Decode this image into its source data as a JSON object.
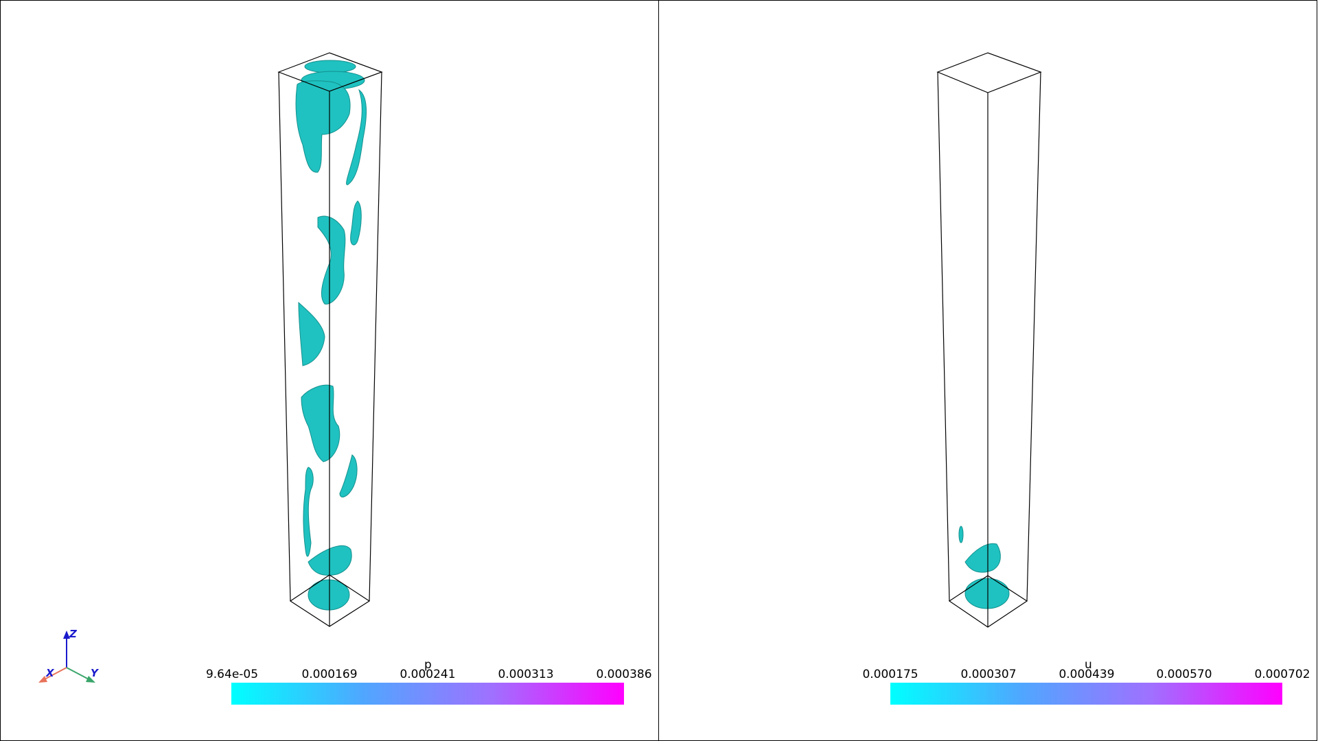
{
  "viewports": [
    {
      "name": "left",
      "scalar_title": "p",
      "ticks": [
        "9.64e-05",
        "0.000169",
        "0.000241",
        "0.000313",
        "0.000386"
      ],
      "colormap": [
        "#00ffff",
        "#ff00ff"
      ]
    },
    {
      "name": "right",
      "scalar_title": "u",
      "ticks": [
        "0.000175",
        "0.000307",
        "0.000439",
        "0.000570",
        "0.000702"
      ],
      "colormap": [
        "#00ffff",
        "#ff00ff"
      ]
    }
  ],
  "orientation_axes": {
    "x_label": "X",
    "y_label": "Y",
    "z_label": "Z",
    "x_color": "#e8735a",
    "y_color": "#3aa56a",
    "z_color": "#1a1acc"
  },
  "isosurface_color": "#1fc2c0"
}
